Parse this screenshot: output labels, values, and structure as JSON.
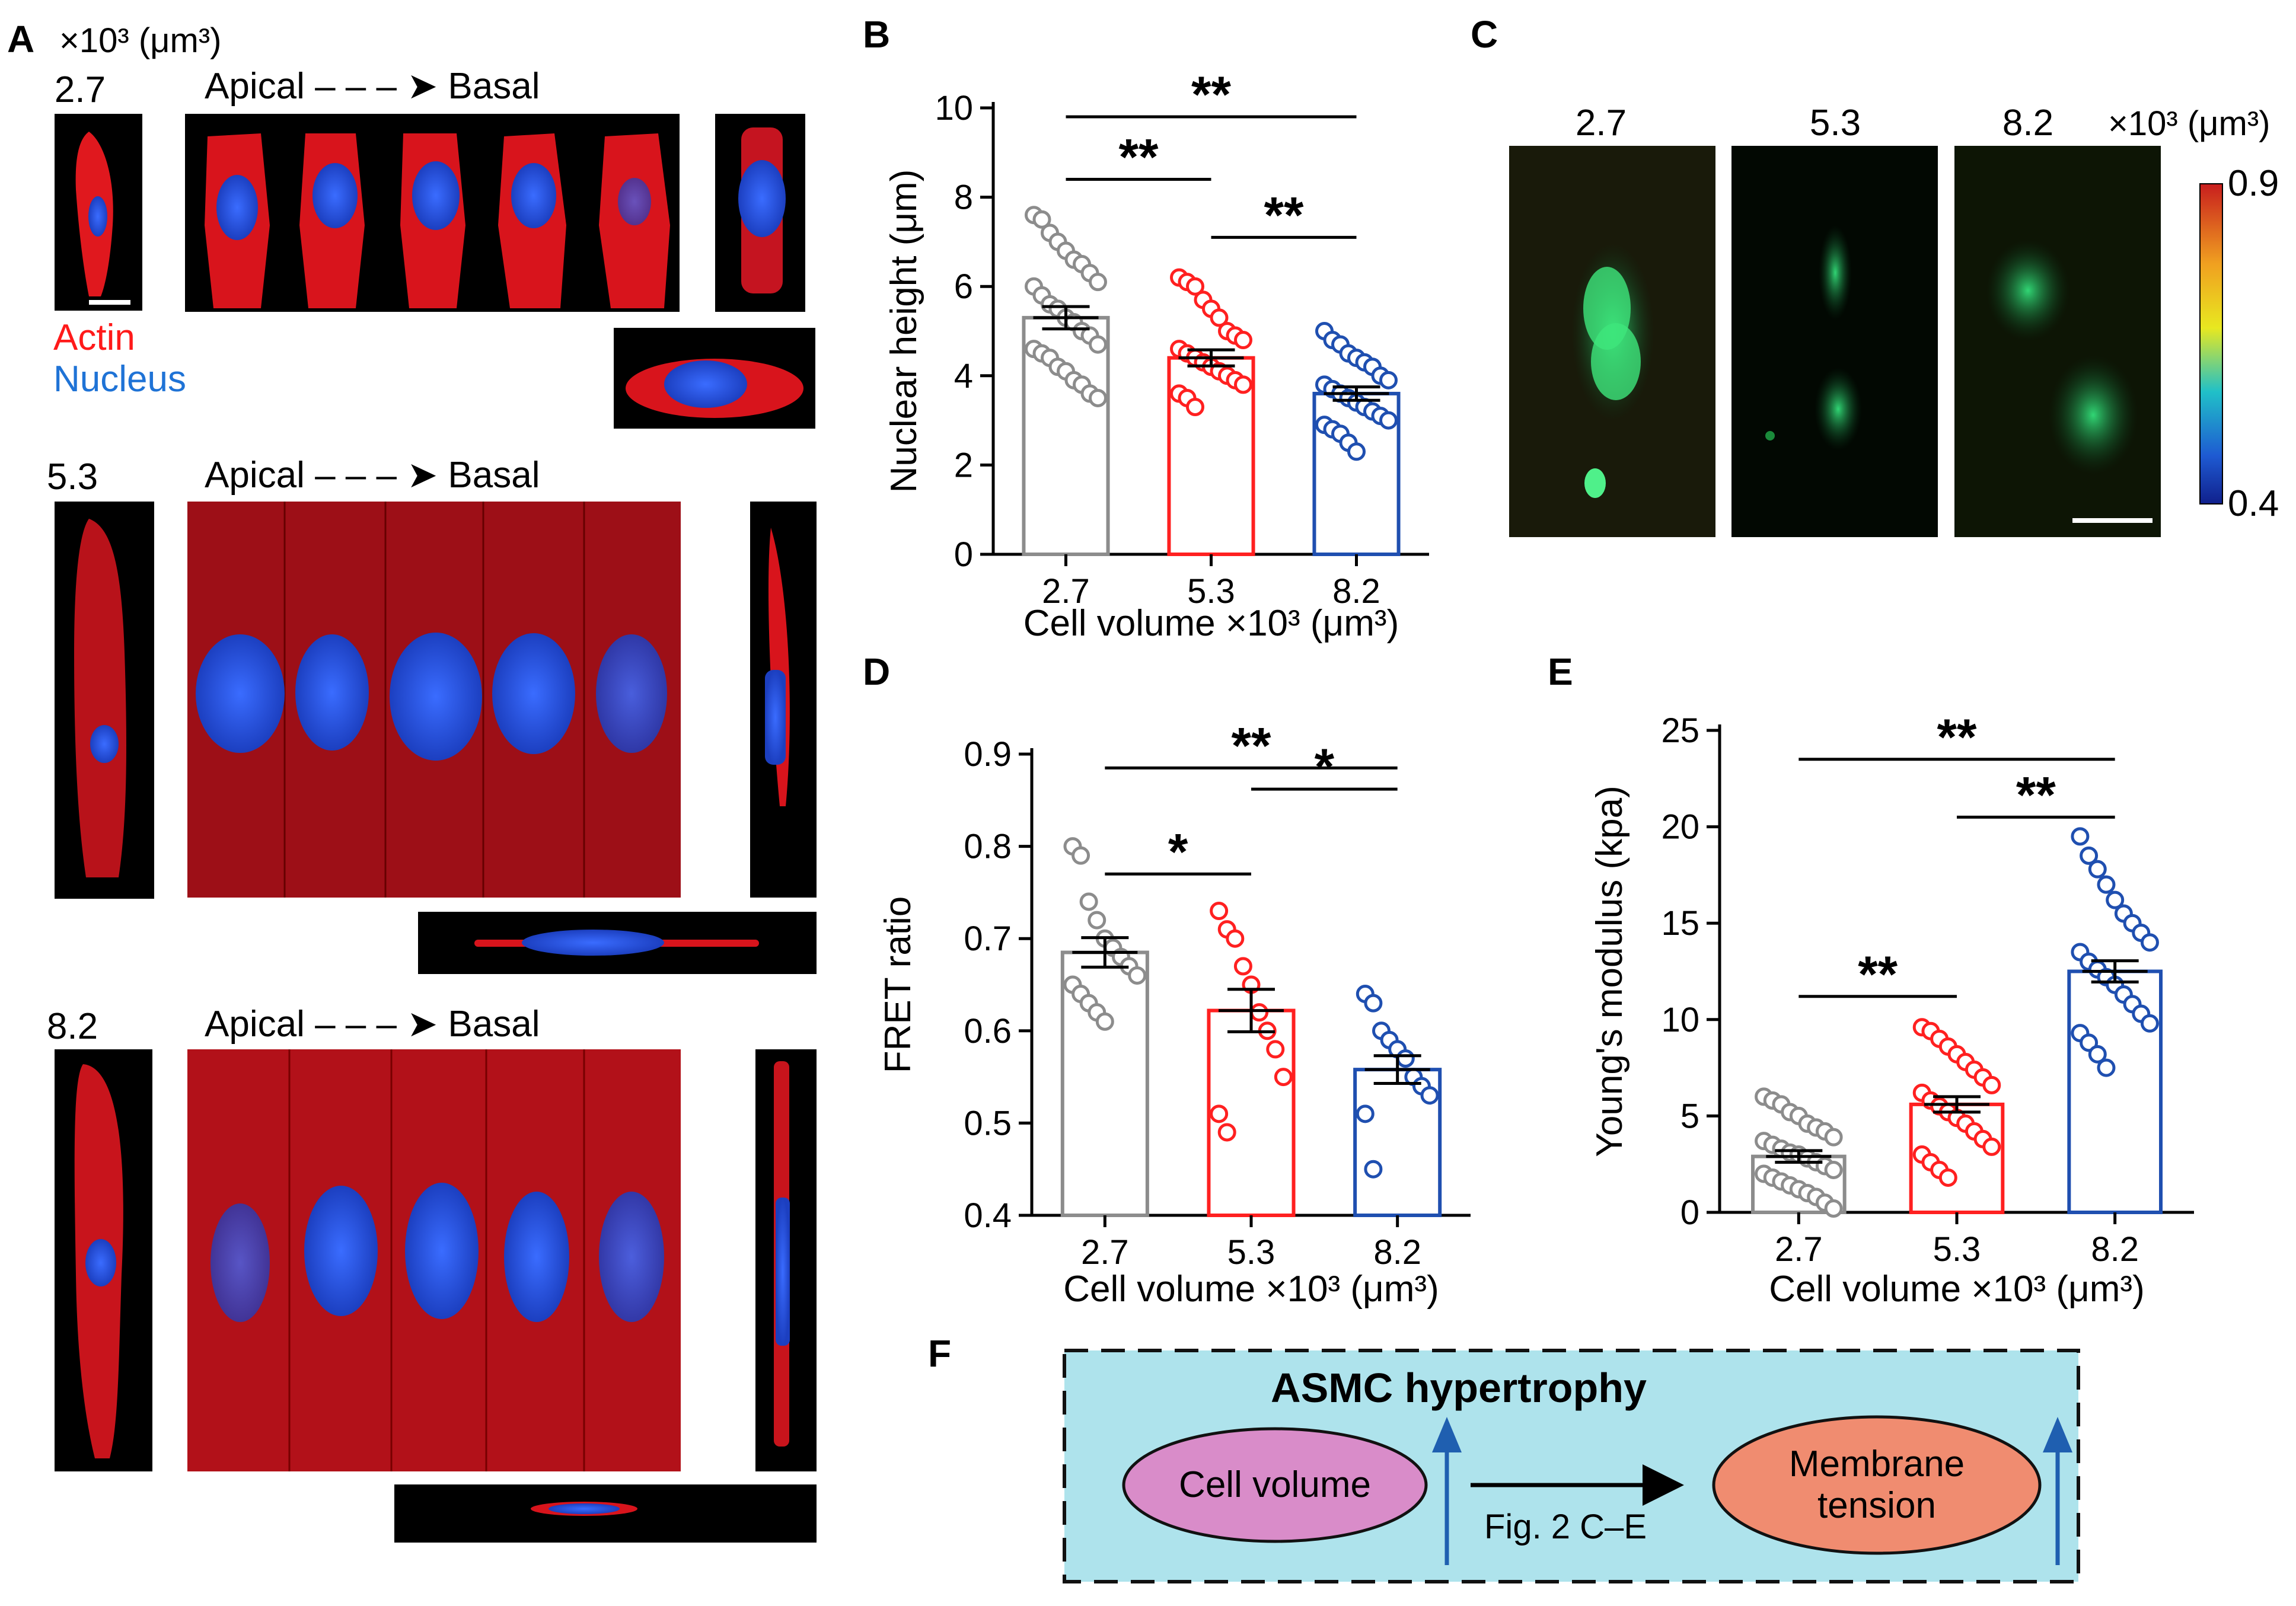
{
  "panels": {
    "A": {
      "label": "A",
      "unit_label": "×10³ (μm³)",
      "legend": {
        "actin": "Actin",
        "nucleus": "Nucleus"
      },
      "rows": [
        {
          "volume": "2.7",
          "direction": "Apical – – – ➤ Basal"
        },
        {
          "volume": "5.3",
          "direction": "Apical – – – ➤ Basal"
        },
        {
          "volume": "8.2",
          "direction": "Apical – – – ➤ Basal"
        }
      ],
      "colors": {
        "actin": "#ff1a1a",
        "nucleus": "#2255ff"
      }
    },
    "B": {
      "label": "B"
    },
    "C": {
      "label": "C",
      "volumes": [
        "2.7",
        "5.3",
        "8.2"
      ],
      "unit_label": "×10³ (μm³)",
      "colorbar": {
        "max": "0.9",
        "min": "0.4"
      }
    },
    "D": {
      "label": "D"
    },
    "E": {
      "label": "E"
    },
    "F": {
      "label": "F",
      "title": "ASMC hypertrophy",
      "left_node": "Cell volume",
      "right_node_line1": "Membrane",
      "right_node_line2": "tension",
      "arrow_label": "Fig. 2 C–E",
      "colors": {
        "box": "#aee3ec",
        "left": "#d98cc9",
        "right": "#f08c70",
        "arrow": "#1f5fb0"
      }
    }
  },
  "chart_data": [
    {
      "id": "B",
      "type": "bar",
      "categories": [
        "2.7",
        "5.3",
        "8.2"
      ],
      "values": [
        5.3,
        4.4,
        3.6
      ],
      "sem": [
        0.25,
        0.18,
        0.15
      ],
      "ylabel": "Nuclear height (μm)",
      "xlabel": "Cell volume ×10³ (μm³)",
      "ylim": [
        0,
        10
      ],
      "yticks": [
        "0",
        "2",
        "4",
        "6",
        "8",
        "10"
      ],
      "colors": [
        "#8c8c8c",
        "#ff2020",
        "#1f4fb0"
      ],
      "points": [
        [
          7.6,
          7.5,
          7.2,
          7.0,
          6.8,
          6.6,
          6.5,
          6.3,
          6.1,
          6.0,
          5.8,
          5.6,
          5.5,
          5.3,
          5.2,
          5.0,
          4.9,
          4.7,
          4.6,
          4.5,
          4.4,
          4.2,
          4.1,
          3.9,
          3.8,
          3.6,
          3.5
        ],
        [
          6.2,
          6.1,
          6.0,
          5.7,
          5.5,
          5.3,
          5.0,
          4.9,
          4.8,
          4.6,
          4.5,
          4.4,
          4.3,
          4.2,
          4.1,
          4.0,
          3.9,
          3.8,
          3.6,
          3.5,
          3.3
        ],
        [
          5.0,
          4.8,
          4.7,
          4.5,
          4.4,
          4.3,
          4.2,
          4.0,
          3.9,
          3.8,
          3.7,
          3.6,
          3.5,
          3.4,
          3.3,
          3.2,
          3.1,
          3.0,
          2.9,
          2.8,
          2.7,
          2.5,
          2.3
        ]
      ],
      "significance": [
        {
          "from": 0,
          "to": 2,
          "label": "**",
          "y": 9.8
        },
        {
          "from": 0,
          "to": 1,
          "label": "**",
          "y": 8.4
        },
        {
          "from": 1,
          "to": 2,
          "label": "**",
          "y": 7.1
        }
      ]
    },
    {
      "id": "D",
      "type": "bar",
      "categories": [
        "2.7",
        "5.3",
        "8.2"
      ],
      "values": [
        0.685,
        0.622,
        0.558
      ],
      "sem": [
        0.016,
        0.023,
        0.015
      ],
      "ylabel": "FRET ratio",
      "xlabel": "Cell volume ×10³ (μm³)",
      "ylim": [
        0.4,
        0.9
      ],
      "yticks": [
        "0.4",
        "0.5",
        "0.6",
        "0.7",
        "0.8",
        "0.9"
      ],
      "colors": [
        "#8c8c8c",
        "#ff2020",
        "#1f4fb0"
      ],
      "points": [
        [
          0.8,
          0.79,
          0.74,
          0.72,
          0.7,
          0.69,
          0.68,
          0.67,
          0.66,
          0.65,
          0.64,
          0.63,
          0.62,
          0.61
        ],
        [
          0.73,
          0.71,
          0.7,
          0.67,
          0.65,
          0.62,
          0.6,
          0.58,
          0.55,
          0.51,
          0.49
        ],
        [
          0.64,
          0.63,
          0.6,
          0.59,
          0.58,
          0.57,
          0.55,
          0.54,
          0.53,
          0.51,
          0.45
        ]
      ],
      "significance": [
        {
          "from": 0,
          "to": 2,
          "label": "**",
          "y": 0.885
        },
        {
          "from": 1,
          "to": 2,
          "label": "*",
          "y": 0.862
        },
        {
          "from": 0,
          "to": 1,
          "label": "*",
          "y": 0.77
        }
      ]
    },
    {
      "id": "E",
      "type": "bar",
      "categories": [
        "2.7",
        "5.3",
        "8.2"
      ],
      "values": [
        2.9,
        5.6,
        12.5
      ],
      "sem": [
        0.3,
        0.4,
        0.55
      ],
      "ylabel": "Young's modulus (kpa)",
      "xlabel": "Cell volume ×10³ (μm³)",
      "ylim": [
        0,
        25
      ],
      "yticks": [
        "0",
        "5",
        "10",
        "15",
        "20",
        "25"
      ],
      "colors": [
        "#8c8c8c",
        "#ff2020",
        "#1f4fb0"
      ],
      "points": [
        [
          6.0,
          5.8,
          5.6,
          5.2,
          5.0,
          4.6,
          4.4,
          4.2,
          3.9,
          3.7,
          3.5,
          3.3,
          3.1,
          3.0,
          2.8,
          2.6,
          2.4,
          2.2,
          2.0,
          1.8,
          1.6,
          1.4,
          1.2,
          1.0,
          0.8,
          0.5,
          0.2
        ],
        [
          9.6,
          9.4,
          9.0,
          8.6,
          8.2,
          7.8,
          7.4,
          7.0,
          6.6,
          6.2,
          5.8,
          5.5,
          5.2,
          4.9,
          4.6,
          4.2,
          3.8,
          3.4,
          3.0,
          2.6,
          2.2,
          1.8
        ],
        [
          19.5,
          18.5,
          17.8,
          17.0,
          16.2,
          15.5,
          15.0,
          14.5,
          14.0,
          13.5,
          13.0,
          12.6,
          12.2,
          11.8,
          11.3,
          10.8,
          10.3,
          9.8,
          9.3,
          8.8,
          8.2,
          7.5
        ]
      ],
      "significance": [
        {
          "from": 0,
          "to": 2,
          "label": "**",
          "y": 23.5
        },
        {
          "from": 1,
          "to": 2,
          "label": "**",
          "y": 20.5
        },
        {
          "from": 0,
          "to": 1,
          "label": "**",
          "y": 11.2
        }
      ]
    }
  ]
}
